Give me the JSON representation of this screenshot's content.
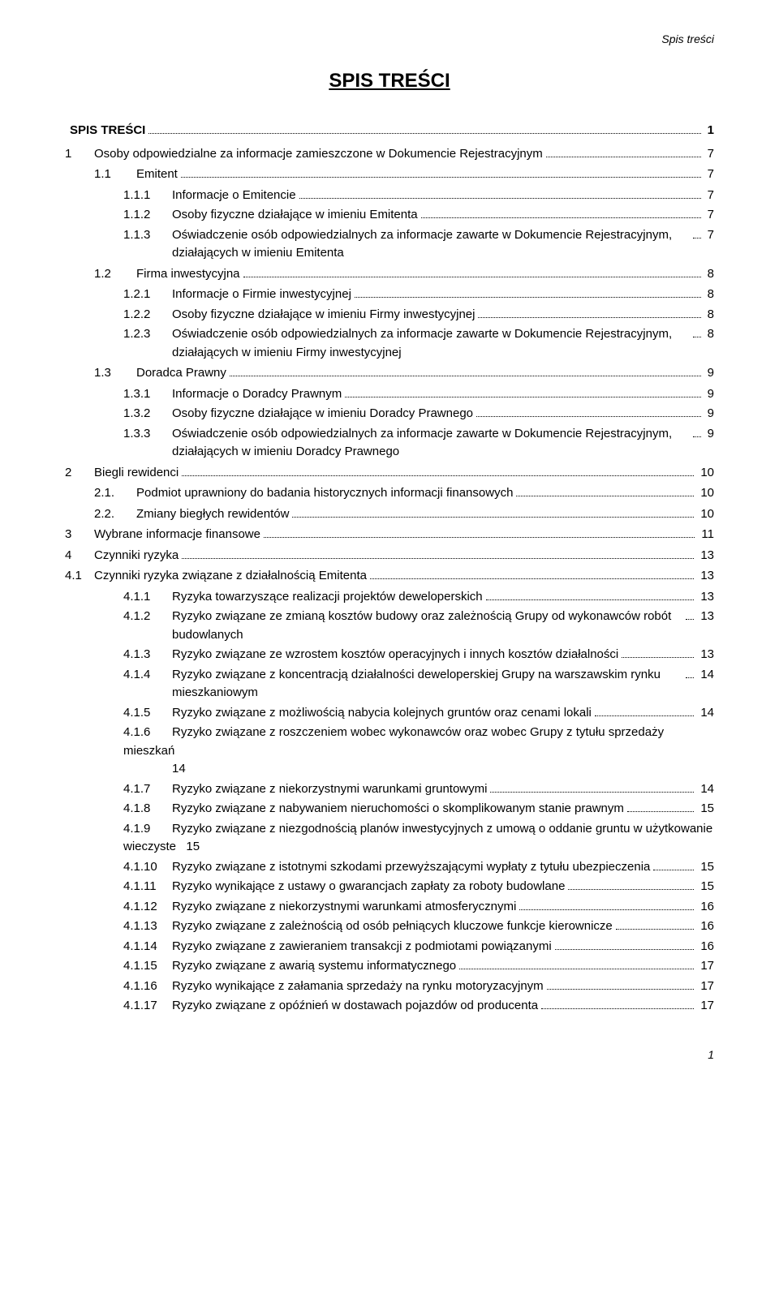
{
  "header": {
    "running_title": "Spis treści"
  },
  "title": "SPIS TREŚCI",
  "footer": {
    "page_number": "1"
  },
  "toc": [
    {
      "lvl": 0,
      "num": "",
      "label": "SPIS TREŚCI",
      "page": "1"
    },
    {
      "lvl": 1,
      "num": "1",
      "label": "Osoby odpowiedzialne za informacje zamieszczone w Dokumencie Rejestracyjnym",
      "page": "7"
    },
    {
      "lvl": 2,
      "num": "1.1",
      "label": "Emitent",
      "page": "7"
    },
    {
      "lvl": 3,
      "num": "1.1.1",
      "label": "Informacje o Emitencie",
      "page": "7"
    },
    {
      "lvl": 3,
      "num": "1.1.2",
      "label": "Osoby fizyczne działające w imieniu Emitenta",
      "page": "7"
    },
    {
      "lvl": 3,
      "num": "1.1.3",
      "label": "Oświadczenie osób odpowiedzialnych za informacje zawarte w Dokumencie Rejestracyjnym, działających w imieniu Emitenta",
      "page": "7"
    },
    {
      "lvl": 2,
      "num": "1.2",
      "label": "Firma inwestycyjna",
      "page": "8"
    },
    {
      "lvl": 3,
      "num": "1.2.1",
      "label": "Informacje o Firmie inwestycyjnej",
      "page": "8"
    },
    {
      "lvl": 3,
      "num": "1.2.2",
      "label": "Osoby fizyczne działające w imieniu Firmy inwestycyjnej",
      "page": "8"
    },
    {
      "lvl": 3,
      "num": "1.2.3",
      "label": "Oświadczenie osób odpowiedzialnych za informacje zawarte w Dokumencie Rejestracyjnym, działających w imieniu Firmy inwestycyjnej",
      "page": "8"
    },
    {
      "lvl": 2,
      "num": "1.3",
      "label": "Doradca Prawny",
      "page": "9"
    },
    {
      "lvl": 3,
      "num": "1.3.1",
      "label": "Informacje o Doradcy Prawnym",
      "page": "9"
    },
    {
      "lvl": 3,
      "num": "1.3.2",
      "label": "Osoby fizyczne działające w imieniu Doradcy Prawnego",
      "page": "9"
    },
    {
      "lvl": 3,
      "num": "1.3.3",
      "label": "Oświadczenie osób odpowiedzialnych za informacje zawarte w Dokumencie Rejestracyjnym, działających w imieniu Doradcy Prawnego",
      "page": "9"
    },
    {
      "lvl": 1,
      "num": "2",
      "label": "Biegli rewidenci",
      "page": "10"
    },
    {
      "lvl": 2,
      "num": "2.1.",
      "label": "Podmiot uprawniony do badania historycznych informacji finansowych",
      "page": "10"
    },
    {
      "lvl": 2,
      "num": "2.2.",
      "label": "Zmiany biegłych rewidentów",
      "page": "10"
    },
    {
      "lvl": 1,
      "num": "3",
      "label": "Wybrane informacje finansowe",
      "page": "11"
    },
    {
      "lvl": 1,
      "num": "4",
      "label": "Czynniki ryzyka",
      "page": "13"
    },
    {
      "lvl": 1,
      "num": "4.1",
      "label": "Czynniki ryzyka związane z działalnością Emitenta",
      "page": "13"
    },
    {
      "lvl": 3,
      "num": "4.1.1",
      "label": "Ryzyka towarzyszące realizacji projektów deweloperskich",
      "page": "13"
    },
    {
      "lvl": 3,
      "num": "4.1.2",
      "label": "Ryzyko związane ze zmianą kosztów budowy oraz zależnością Grupy od wykonawców robót budowlanych",
      "page": "13"
    },
    {
      "lvl": 3,
      "num": "4.1.3",
      "label": "Ryzyko związane ze wzrostem kosztów operacyjnych i innych kosztów działalności",
      "page": "13"
    },
    {
      "lvl": 3,
      "num": "4.1.4",
      "label": "Ryzyko związane z koncentracją działalności deweloperskiej Grupy na warszawskim rynku mieszkaniowym",
      "page": "14"
    },
    {
      "lvl": 3,
      "num": "4.1.5",
      "label": "Ryzyko związane z możliwością nabycia kolejnych gruntów oraz cenami lokali",
      "page": "14"
    },
    {
      "lvl": 3,
      "num": "4.1.6",
      "label": "Ryzyko związane z roszczeniem wobec wykonawców oraz wobec Grupy z tytułu sprzedaży mieszkań",
      "page": "14",
      "nopage_leader": true
    },
    {
      "lvl": 3,
      "num": "4.1.7",
      "label": "Ryzyko związane z niekorzystnymi warunkami gruntowymi",
      "page": "14"
    },
    {
      "lvl": 3,
      "num": "4.1.8",
      "label": "Ryzyko związane z nabywaniem nieruchomości o skomplikowanym stanie prawnym",
      "page": "15"
    },
    {
      "lvl": 3,
      "num": "4.1.9",
      "label": "Ryzyko związane z niezgodnością planów inwestycyjnych z umową o oddanie gruntu w użytkowanie wieczyste",
      "page": "15",
      "nopage_leader": true,
      "hang_second": true
    },
    {
      "lvl": 3,
      "num": "4.1.10",
      "label": "Ryzyko związane z istotnymi szkodami przewyższającymi wypłaty z tytułu ubezpieczenia",
      "page": "15"
    },
    {
      "lvl": 3,
      "num": "4.1.11",
      "label": "Ryzyko wynikające z ustawy o gwarancjach zapłaty za roboty budowlane",
      "page": "15"
    },
    {
      "lvl": 3,
      "num": "4.1.12",
      "label": "Ryzyko związane z niekorzystnymi warunkami atmosferycznymi",
      "page": "16"
    },
    {
      "lvl": 3,
      "num": "4.1.13",
      "label": "Ryzyko związane z zależnością od osób pełniących kluczowe funkcje kierownicze",
      "page": "16"
    },
    {
      "lvl": 3,
      "num": "4.1.14",
      "label": "Ryzyko związane z zawieraniem transakcji z podmiotami powiązanymi",
      "page": "16"
    },
    {
      "lvl": 3,
      "num": "4.1.15",
      "label": "Ryzyko związane z awarią systemu informatycznego",
      "page": "17"
    },
    {
      "lvl": 3,
      "num": "4.1.16",
      "label": "Ryzyko wynikające z załamania sprzedaży na rynku motoryzacyjnym",
      "page": "17"
    },
    {
      "lvl": 3,
      "num": "4.1.17",
      "label": "Ryzyko związane z opóźnień w dostawach pojazdów od producenta",
      "page": "17"
    }
  ],
  "style": {
    "font_family": "Arial",
    "text_color": "#000000",
    "background": "#ffffff",
    "title_fontsize": 24,
    "body_fontsize": 15,
    "header_fontsize": 14,
    "leader_style": "dotted"
  }
}
